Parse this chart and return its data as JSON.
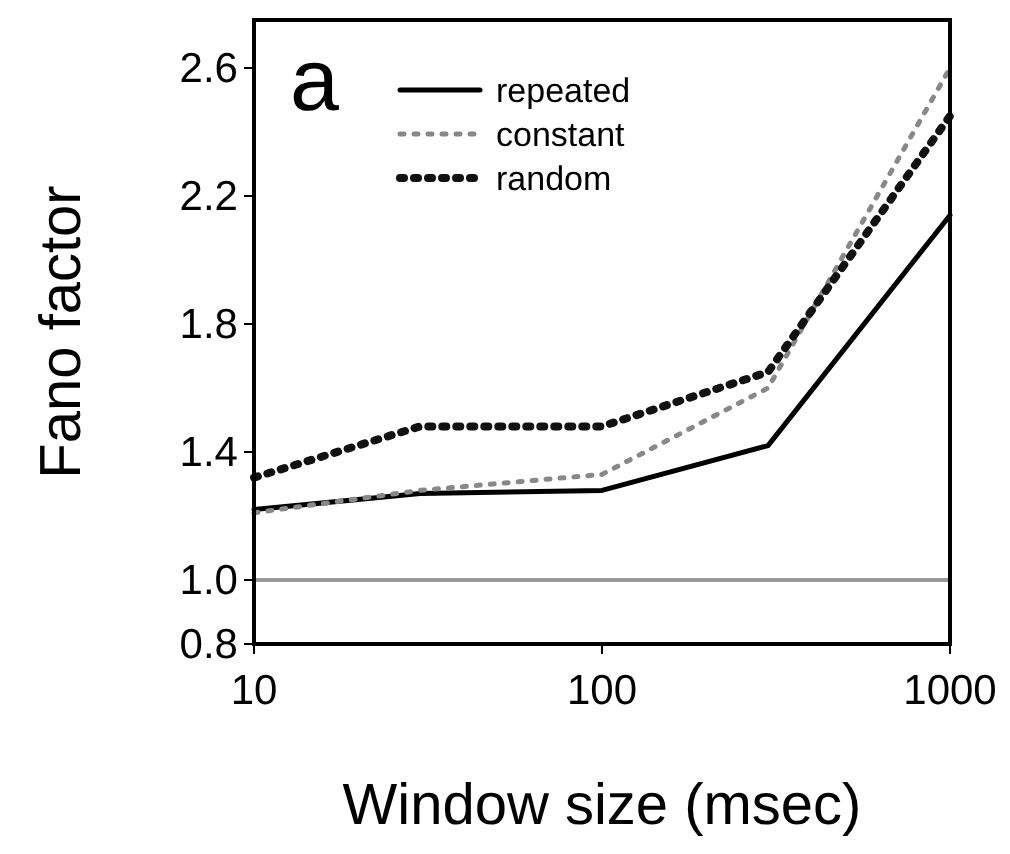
{
  "chart_data": {
    "type": "line",
    "xlabel": "Window size (msec)",
    "ylabel": "Fano factor",
    "log": "x",
    "x": [
      10,
      30,
      100,
      300,
      1000
    ],
    "xlim": [
      10,
      1000
    ],
    "xticks": [
      10,
      100,
      1000
    ],
    "ylim": [
      0.8,
      2.75
    ],
    "yticks": [
      {
        "value": 0.8,
        "label": "0.8"
      },
      {
        "value": 1.0,
        "label": "1.0"
      },
      {
        "value": 1.4,
        "label": "1.4"
      },
      {
        "value": 1.8,
        "label": "1.8"
      },
      {
        "value": 2.2,
        "label": "2.2"
      },
      {
        "value": 2.6,
        "label": "2.6"
      }
    ],
    "series": [
      {
        "name": "repeated",
        "color": "#000000",
        "line_style": "solid",
        "values": [
          1.22,
          1.27,
          1.28,
          1.42,
          2.14
        ]
      },
      {
        "name": "constant",
        "color": "#888888",
        "line_style": "dotted",
        "values": [
          1.21,
          1.28,
          1.33,
          1.6,
          2.6
        ]
      },
      {
        "name": "random",
        "color": "#111111",
        "line_style": "dotted",
        "values": [
          1.32,
          1.48,
          1.48,
          1.65,
          2.45
        ]
      }
    ],
    "ref_lines": [
      {
        "axis": "y",
        "value": 1.0,
        "color": "#999999"
      }
    ],
    "annotations": [
      "a"
    ],
    "legend": "top",
    "grid": false
  }
}
